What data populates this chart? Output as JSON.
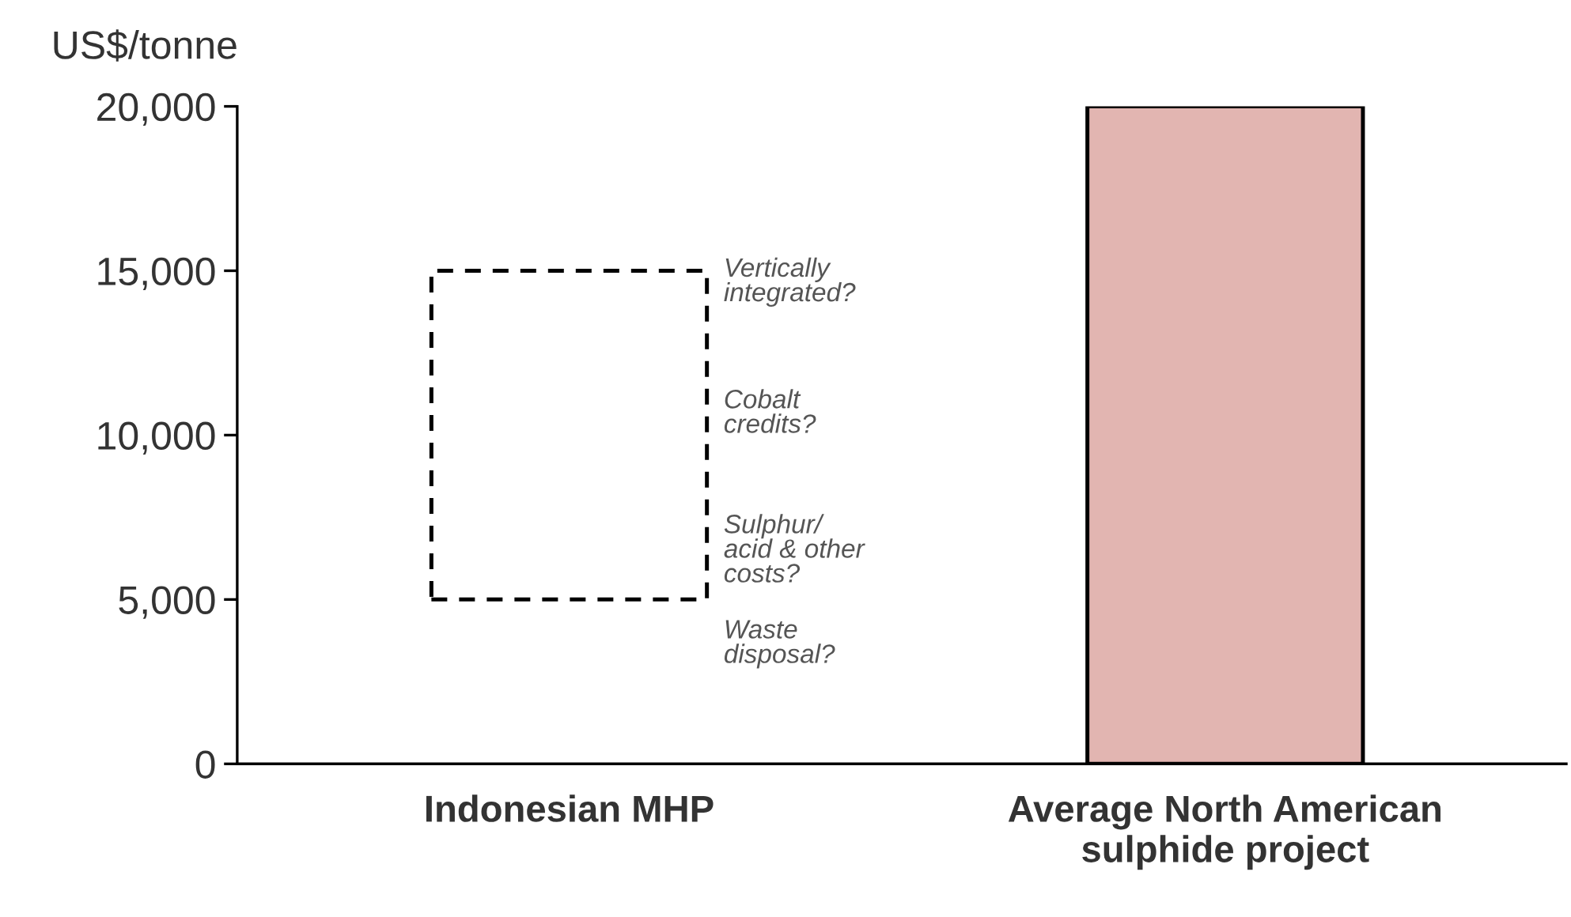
{
  "chart_data": {
    "type": "bar",
    "ylabel": "US$/tonne",
    "categories": [
      "Indonesian MHP",
      "Average North American\nsulphide project"
    ],
    "series": [
      {
        "color": "#000000",
        "values": [
          10000,
          null
        ],
        "base": [
          5000,
          null
        ],
        "line_style": "dashed"
      },
      {
        "color": "#e2b5b1",
        "values": [
          null,
          20000
        ],
        "base": [
          null,
          0
        ]
      }
    ],
    "ylim": [
      0,
      20000
    ],
    "yticks": [
      {
        "value": 0,
        "label": "0"
      },
      {
        "value": 5000,
        "label": "5,000"
      },
      {
        "value": 10000,
        "label": "10,000"
      },
      {
        "value": 15000,
        "label": "15,000"
      },
      {
        "value": 20000,
        "label": "20,000"
      }
    ],
    "grid": false,
    "annotations": [
      "Vertically\nintegrated?",
      "Cobalt\ncredits?",
      "Sulphur/\nacid & other\ncosts?",
      "Waste\ndisposal?"
    ]
  }
}
